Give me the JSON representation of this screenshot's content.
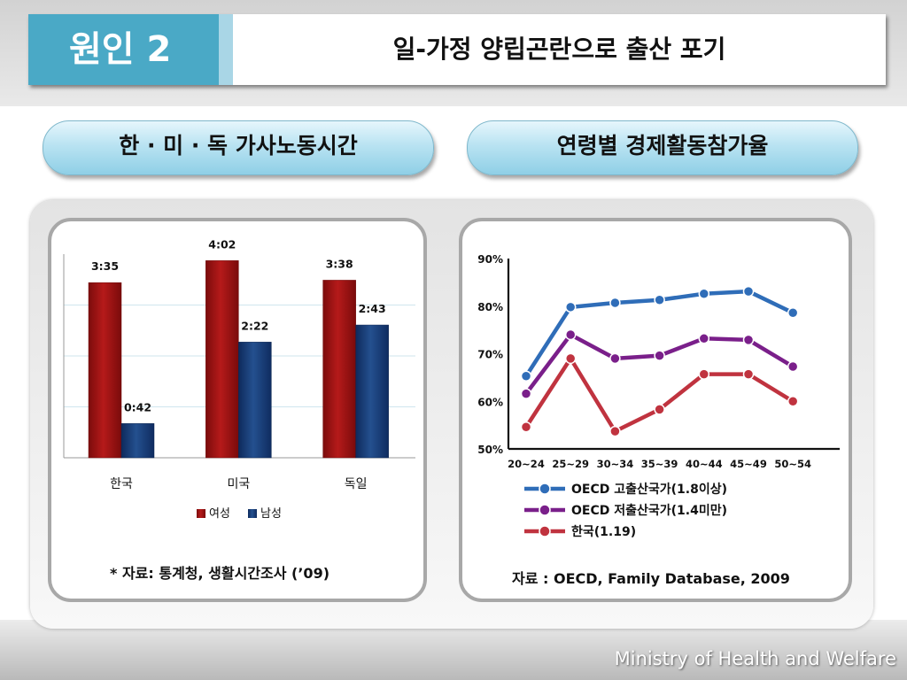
{
  "header": {
    "cause_label": "원인 2",
    "title": "일-가정 양립곤란으로 출산 포기"
  },
  "left_pill": "한 · 미 · 독 가사노동시간",
  "right_pill": "연령별 경제활동참가율",
  "left_source": "* 자료: 통계청, 생활시간조사 (’09)",
  "right_source": "자료 : OECD, Family Database, 2009",
  "footer": "Ministry of Health and Welfare",
  "colors": {
    "accent": "#4aa9c6",
    "female": "#a01313",
    "male": "#1a3f7e",
    "high_fertility": "#2f6db8",
    "low_fertility": "#7a1f8a",
    "korea": "#c0333f"
  },
  "chart_data": [
    {
      "type": "bar",
      "categories": [
        "한국",
        "미국",
        "독일"
      ],
      "series": [
        {
          "name": "여성",
          "values": [
            215,
            242,
            218
          ],
          "labels": [
            "3:35",
            "4:02",
            "3:38"
          ]
        },
        {
          "name": "남성",
          "values": [
            42,
            142,
            163
          ],
          "labels": [
            "0:42",
            "2:22",
            "2:43"
          ]
        }
      ],
      "unit": "minutes (h:mm)",
      "ylim": [
        0,
        250
      ],
      "grid": true,
      "legend": "bottom"
    },
    {
      "type": "line",
      "x": [
        "20~24",
        "25~29",
        "30~34",
        "35~39",
        "40~44",
        "45~49",
        "50~54"
      ],
      "y_ticks": [
        "50%",
        "60%",
        "70%",
        "80%",
        "90%"
      ],
      "ylim": [
        50,
        90
      ],
      "series": [
        {
          "name": "OECD 고출산국가(1.8이상)",
          "values": [
            65.3,
            79.8,
            80.7,
            81.3,
            82.6,
            83.1,
            78.6
          ]
        },
        {
          "name": "OECD 저출산국가(1.4미만)",
          "values": [
            61.6,
            74.0,
            69.0,
            69.6,
            73.2,
            72.9,
            67.3
          ]
        },
        {
          "name": "한국(1.19)",
          "values": [
            54.6,
            69.0,
            53.7,
            58.3,
            65.7,
            65.7,
            60.0
          ]
        }
      ],
      "legend": "bottom-left"
    }
  ]
}
